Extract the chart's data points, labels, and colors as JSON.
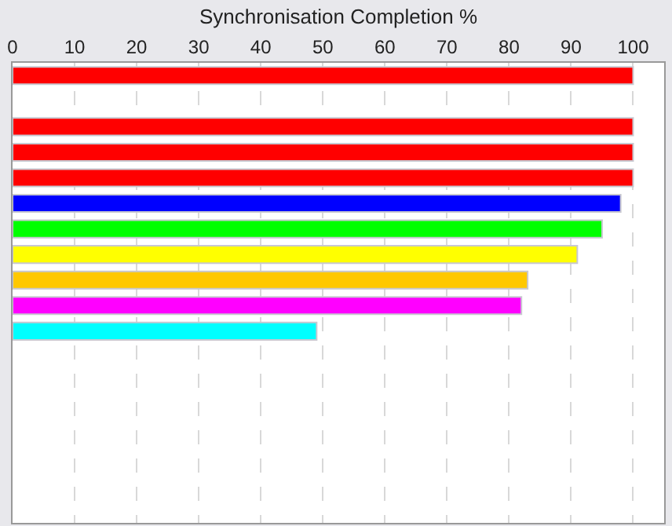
{
  "chart_data": {
    "type": "bar",
    "orientation": "horizontal",
    "xlabel": "Synchronisation Completion %",
    "categories": [
      null,
      null,
      null,
      null,
      null,
      null,
      null,
      null,
      null,
      null,
      null,
      null,
      null,
      null,
      null,
      null,
      null,
      null
    ],
    "values": [
      100,
      null,
      100,
      100,
      100,
      98,
      95,
      91,
      83,
      82,
      49,
      null,
      null,
      null,
      null,
      null,
      null,
      null
    ],
    "colors": [
      "#ff0000",
      "#ffffff",
      "#ff0000",
      "#ff0000",
      "#ff0000",
      "#0000ff",
      "#00ff00",
      "#ffff00",
      "#ffc800",
      "#ff00ff",
      "#00ffff",
      "#ffffff",
      "#ffffff",
      "#ffffff",
      "#ffffff",
      "#ffffff",
      "#ffffff",
      "#ffffff"
    ],
    "xlim": [
      0,
      105
    ],
    "xticks": [
      0,
      10,
      20,
      30,
      40,
      50,
      60,
      70,
      80,
      90,
      100
    ],
    "grid": "x",
    "tick_labels": "x"
  }
}
